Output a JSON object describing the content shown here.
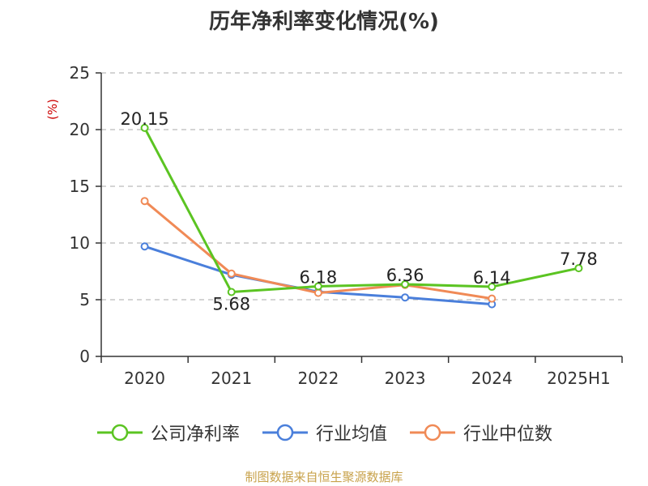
{
  "chart_data": {
    "type": "line",
    "title": "历年净利率变化情况(%)",
    "y_unit": "(%)",
    "categories": [
      "2020",
      "2021",
      "2022",
      "2023",
      "2024",
      "2025H1"
    ],
    "ylim": [
      0,
      25
    ],
    "y_ticks": [
      "0",
      "5",
      "10",
      "15",
      "20",
      "25"
    ],
    "grid": "dashed horizontal",
    "legend_position": "bottom",
    "series": [
      {
        "name": "公司净利率",
        "color": "#5bc422",
        "values": [
          20.15,
          5.68,
          6.18,
          6.36,
          6.14,
          7.78
        ],
        "labels": [
          "20.15",
          "5.68",
          "6.18",
          "6.36",
          "6.14",
          "7.78"
        ]
      },
      {
        "name": "行业均值",
        "color": "#4a7fdb",
        "values": [
          9.7,
          7.2,
          5.7,
          5.2,
          4.6,
          null
        ]
      },
      {
        "name": "行业中位数",
        "color": "#f08a56",
        "values": [
          13.7,
          7.3,
          5.6,
          6.3,
          5.1,
          null
        ]
      }
    ]
  },
  "source": "制图数据来自恒生聚源数据库"
}
